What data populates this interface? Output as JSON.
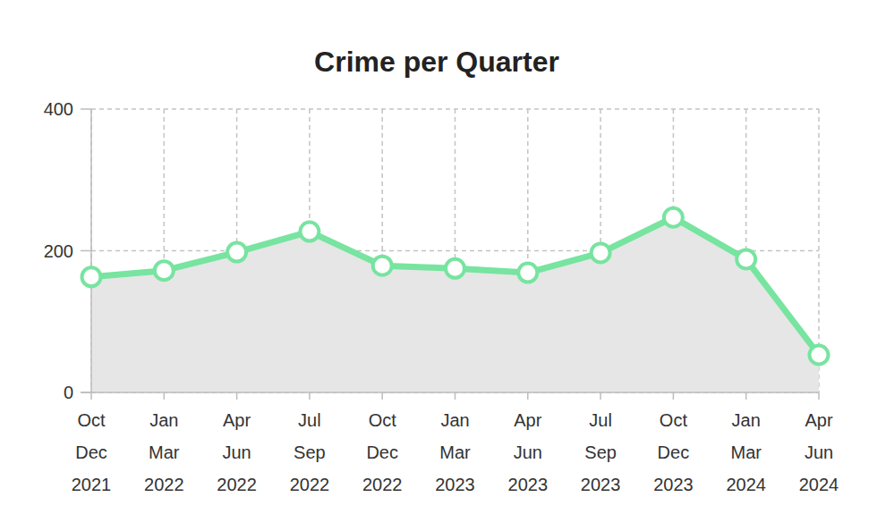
{
  "chart_data": {
    "type": "area",
    "title": "Crime per Quarter",
    "categories": [
      "Oct\nDec\n2021",
      "Jan\nMar\n2022",
      "Apr\nJun\n2022",
      "Jul\nSep\n2022",
      "Oct\nDec\n2022",
      "Jan\nMar\n2023",
      "Apr\nJun\n2023",
      "Jul\nSep\n2023",
      "Oct\nDec\n2023",
      "Jan\nMar\n2024",
      "Apr\nJun\n2024"
    ],
    "values": [
      163,
      172,
      198,
      227,
      179,
      175,
      169,
      197,
      247,
      188,
      53
    ],
    "color": "#77e4a0",
    "marker": "circle",
    "ylim": [
      0,
      400
    ],
    "yticks": [
      0,
      200,
      400
    ],
    "grid": true
  }
}
